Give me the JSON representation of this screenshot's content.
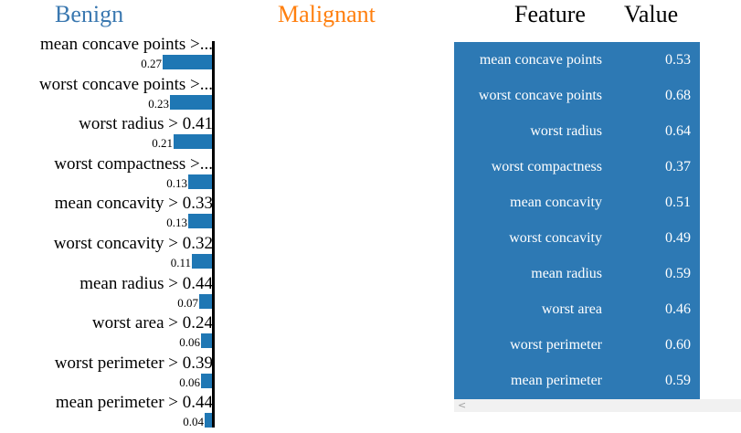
{
  "headers": {
    "benign": "Benign",
    "malignant": "Malignant",
    "feature": "Feature",
    "value": "Value"
  },
  "colors": {
    "benign": "#3a78b0",
    "malignant": "#ff7f0e",
    "bar": "#1f77b4",
    "table_bg": "#2d79b4"
  },
  "chart_data": {
    "type": "bar",
    "orientation": "horizontal",
    "categories": [
      "mean concave points >...",
      "worst concave points >...",
      "worst radius > 0.41",
      "worst compactness >...",
      "mean concavity > 0.33",
      "worst concavity > 0.32",
      "mean radius > 0.44",
      "worst area > 0.24",
      "worst perimeter > 0.39",
      "mean perimeter > 0.44"
    ],
    "values": [
      0.27,
      0.23,
      0.21,
      0.13,
      0.13,
      0.11,
      0.07,
      0.06,
      0.06,
      0.04
    ],
    "value_labels": [
      "0.27",
      "0.23",
      "0.21",
      "0.13",
      "0.13",
      "0.11",
      "0.07",
      "0.06",
      "0.06",
      "0.04"
    ],
    "xlim": [
      0,
      0.27
    ]
  },
  "table": {
    "rows": [
      {
        "feature": "mean concave points",
        "value": "0.53"
      },
      {
        "feature": "worst concave points",
        "value": "0.68"
      },
      {
        "feature": "worst radius",
        "value": "0.64"
      },
      {
        "feature": "worst compactness",
        "value": "0.37"
      },
      {
        "feature": "mean concavity",
        "value": "0.51"
      },
      {
        "feature": "worst concavity",
        "value": "0.49"
      },
      {
        "feature": "mean radius",
        "value": "0.59"
      },
      {
        "feature": "worst area",
        "value": "0.46"
      },
      {
        "feature": "worst perimeter",
        "value": "0.60"
      },
      {
        "feature": "mean perimeter",
        "value": "0.59"
      }
    ]
  },
  "scrollbar": {
    "left_arrow": "<"
  }
}
